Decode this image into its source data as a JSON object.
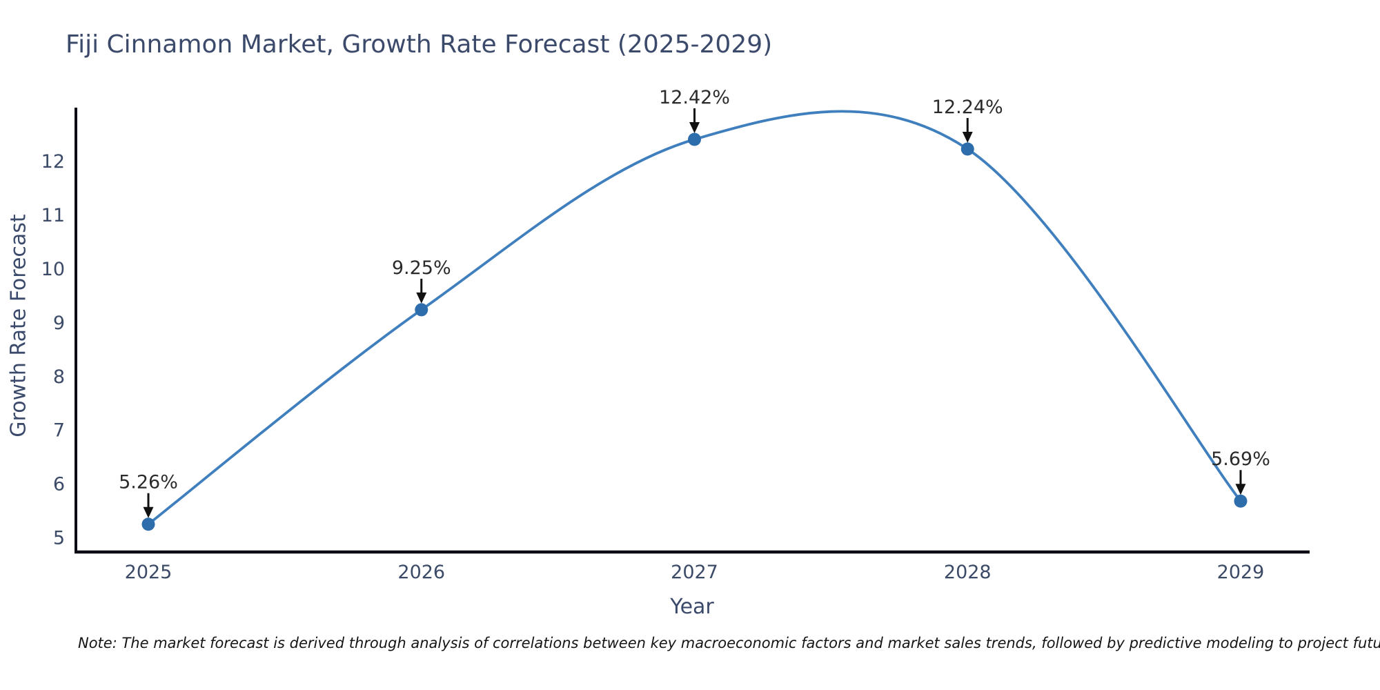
{
  "chart_data": {
    "type": "line",
    "title": "Fiji Cinnamon Market, Growth Rate Forecast (2025-2029)",
    "xlabel": "Year",
    "ylabel": "Growth Rate Forecast",
    "categories": [
      "2025",
      "2026",
      "2027",
      "2028",
      "2029"
    ],
    "series": [
      {
        "name": "Growth Rate Forecast",
        "values": [
          5.26,
          9.25,
          12.42,
          12.24,
          5.69
        ],
        "point_labels": [
          "5.26%",
          "9.25%",
          "12.42%",
          "12.24%",
          "5.69%"
        ]
      }
    ],
    "yticks": [
      5,
      6,
      7,
      8,
      9,
      10,
      11,
      12
    ],
    "ylim": [
      4.7,
      12.95
    ],
    "grid": false,
    "legend_position": "none",
    "line_shape": "spline",
    "colors": {
      "line": "#3f7fbe",
      "marker": "#2e6dab",
      "axis": "#0b0b14",
      "tick_text": "#3b4a66",
      "annotation_text": "#2b2b2b",
      "arrow": "#111111"
    }
  },
  "note": "Note: The market forecast is derived through analysis of correlations between key macroeconomic factors and market sales trends, followed by predictive modeling to project future sales"
}
